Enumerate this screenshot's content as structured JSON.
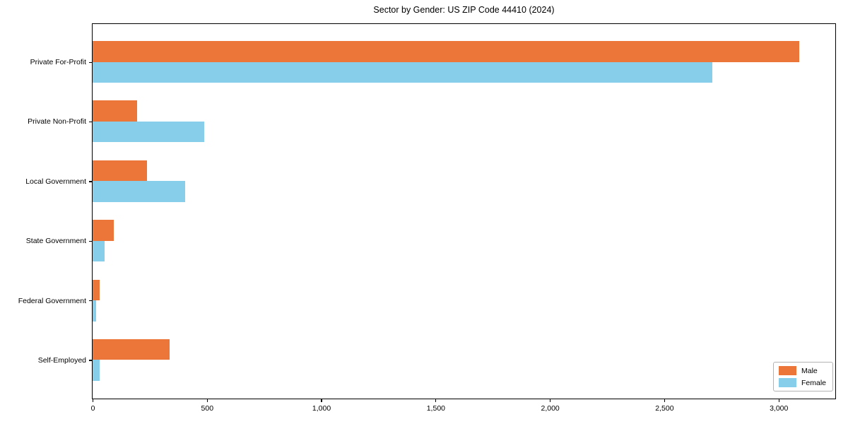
{
  "chart_data": {
    "type": "bar",
    "orientation": "horizontal",
    "title": "Sector by Gender: US ZIP Code 44410 (2024)",
    "categories": [
      "Private For-Profit",
      "Private Non-Profit",
      "Local Government",
      "State Government",
      "Federal Government",
      "Self-Employed"
    ],
    "series": [
      {
        "name": "Male",
        "color": "#ec7639",
        "values": [
          3090,
          195,
          239,
          92,
          31,
          338
        ]
      },
      {
        "name": "Female",
        "color": "#87ceeb",
        "values": [
          2710,
          487,
          405,
          51,
          15,
          31
        ]
      }
    ],
    "xlabel": "",
    "ylabel": "",
    "xlim": [
      0,
      3245
    ],
    "x_ticks": [
      0,
      500,
      1000,
      1500,
      2000,
      2500,
      3000
    ],
    "x_tick_labels": [
      "0",
      "500",
      "1,000",
      "1,500",
      "2,000",
      "2,500",
      "3,000"
    ],
    "grid": false,
    "legend": {
      "position": "lower right",
      "entries": [
        "Male",
        "Female"
      ]
    }
  }
}
